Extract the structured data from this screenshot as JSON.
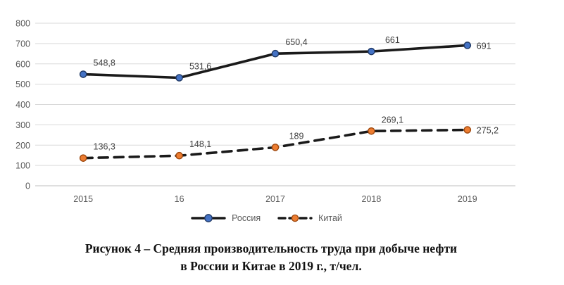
{
  "chart_data": {
    "type": "line",
    "title": "Рисунок 4 – Средняя производительность труда при добыче нефти в России и Китае в 2019 г., т/чел.",
    "categories": [
      "2015",
      "16",
      "2017",
      "2018",
      "2019"
    ],
    "series": [
      {
        "name": "Россия",
        "values": [
          548.8,
          531.6,
          650.4,
          661,
          691
        ],
        "labels": [
          "548,8",
          "531,6",
          "650,4",
          "661",
          "691"
        ],
        "line_color": "#1a1a1a",
        "line_style": "solid",
        "marker_fill": "#4472c4",
        "marker_stroke": "#1f3864"
      },
      {
        "name": "Китай",
        "values": [
          136.3,
          148.1,
          189,
          269.1,
          275.2
        ],
        "labels": [
          "136,3",
          "148,1",
          "189",
          "269,1",
          "275,2"
        ],
        "line_color": "#1a1a1a",
        "line_style": "dashed",
        "marker_fill": "#ed7d31",
        "marker_stroke": "#9e480e"
      }
    ],
    "xlabel": "",
    "ylabel": "",
    "ylim": [
      0,
      800
    ],
    "yticks": [
      0,
      100,
      200,
      300,
      400,
      500,
      600,
      700,
      800
    ],
    "grid": true,
    "legend_position": "bottom"
  },
  "caption": {
    "line1": "Рисунок 4 – Средняя производительность труда при добыче нефти",
    "line2": "в России и Китае в 2019 г., т/чел."
  },
  "colors": {
    "background": "#ffffff",
    "gridline": "#d9d9d9",
    "axis_line": "#bfbfbf",
    "tick_label": "#595959",
    "data_label": "#404040",
    "legend_label": "#595959"
  }
}
